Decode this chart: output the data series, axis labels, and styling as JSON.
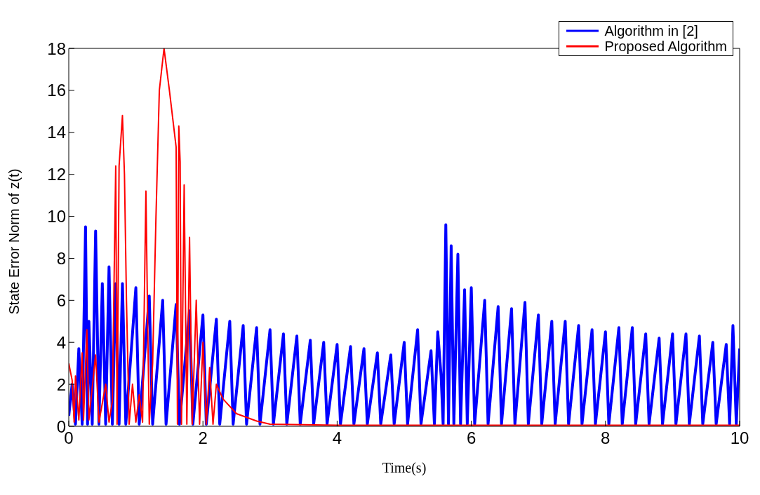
{
  "chart_data": {
    "type": "line",
    "xlabel": "Time(s)",
    "ylabel": "State Error Norm of z(t)",
    "xlim": [
      0,
      10
    ],
    "xticks": [
      0,
      2,
      4,
      6,
      8,
      10
    ],
    "ylim": [
      0,
      18
    ],
    "yticks": [
      0,
      2,
      4,
      6,
      8,
      10,
      12,
      14,
      16,
      18
    ],
    "grid": false,
    "legend": "top right",
    "marker": "none",
    "line_style": "solid",
    "series": [
      {
        "name": "Algorithm in [2]",
        "color": "#0000ff",
        "x": [
          0,
          0.05,
          0.1,
          0.15,
          0.2,
          0.25,
          0.28,
          0.3,
          0.35,
          0.4,
          0.45,
          0.5,
          0.55,
          0.6,
          0.65,
          0.7,
          0.75,
          0.8,
          0.85,
          1.0,
          1.05,
          1.2,
          1.25,
          1.4,
          1.45,
          1.6,
          1.65,
          1.8,
          1.85,
          2.0,
          2.05,
          2.2,
          2.25,
          2.4,
          2.45,
          2.6,
          2.65,
          2.8,
          2.85,
          3.0,
          3.05,
          3.2,
          3.25,
          3.4,
          3.45,
          3.6,
          3.65,
          3.8,
          3.85,
          4.0,
          4.05,
          4.2,
          4.25,
          4.4,
          4.45,
          4.6,
          4.65,
          4.8,
          4.85,
          5.0,
          5.05,
          5.2,
          5.25,
          5.4,
          5.45,
          5.5,
          5.55,
          5.58,
          5.62,
          5.66,
          5.7,
          5.74,
          5.8,
          5.84,
          5.9,
          5.94,
          6.0,
          6.05,
          6.2,
          6.25,
          6.4,
          6.45,
          6.6,
          6.65,
          6.8,
          6.85,
          7.0,
          7.05,
          7.2,
          7.25,
          7.4,
          7.45,
          7.6,
          7.65,
          7.8,
          7.85,
          8.0,
          8.05,
          8.2,
          8.25,
          8.4,
          8.45,
          8.6,
          8.65,
          8.8,
          8.85,
          9.0,
          9.05,
          9.2,
          9.25,
          9.4,
          9.45,
          9.6,
          9.65,
          9.8,
          9.85,
          9.9,
          9.95,
          10
        ],
        "values": [
          0.5,
          2.0,
          0.1,
          3.7,
          0.1,
          9.5,
          0.1,
          5.0,
          0.1,
          9.3,
          0.1,
          6.8,
          0.1,
          7.6,
          0.1,
          6.8,
          0.1,
          6.8,
          0.1,
          6.6,
          0.1,
          6.2,
          0.1,
          6.0,
          0.1,
          5.8,
          0.1,
          5.5,
          0.1,
          5.3,
          0.1,
          5.1,
          0.1,
          5.0,
          0.1,
          4.8,
          0.1,
          4.7,
          0.1,
          4.6,
          0.1,
          4.4,
          0.1,
          4.3,
          0.1,
          4.1,
          0.1,
          4.0,
          0.1,
          3.9,
          0.1,
          3.8,
          0.1,
          3.7,
          0.1,
          3.5,
          0.1,
          3.4,
          0.1,
          4.0,
          0.1,
          4.6,
          0.1,
          3.6,
          0.1,
          4.5,
          2.4,
          0.1,
          9.6,
          0.1,
          8.6,
          0.1,
          8.2,
          0.1,
          6.5,
          0.1,
          6.6,
          0.1,
          6.0,
          0.1,
          5.7,
          0.1,
          5.6,
          0.1,
          5.9,
          0.1,
          5.3,
          0.1,
          5.0,
          0.1,
          5.0,
          0.1,
          4.8,
          0.1,
          4.6,
          0.1,
          4.5,
          0.1,
          4.7,
          0.1,
          4.7,
          0.1,
          4.4,
          0.1,
          4.2,
          0.1,
          4.4,
          0.1,
          4.4,
          0.1,
          4.3,
          0.1,
          4.0,
          0.1,
          3.9,
          0.1,
          4.8,
          0.1,
          3.7
        ]
      },
      {
        "name": "Proposed Algorithm",
        "color": "#ff0000",
        "x": [
          0,
          0.05,
          0.08,
          0.1,
          0.15,
          0.2,
          0.22,
          0.27,
          0.3,
          0.4,
          0.45,
          0.55,
          0.6,
          0.65,
          0.68,
          0.7,
          0.72,
          0.75,
          0.8,
          0.83,
          0.86,
          0.9,
          0.95,
          1.0,
          1.05,
          1.1,
          1.15,
          1.18,
          1.2,
          1.25,
          1.3,
          1.35,
          1.42,
          1.5,
          1.6,
          1.62,
          1.64,
          1.66,
          1.68,
          1.72,
          1.76,
          1.8,
          1.84,
          1.9,
          1.95,
          2.0,
          2.05,
          2.1,
          2.15,
          2.2,
          2.3,
          2.5,
          2.8,
          3.0,
          4.0,
          10
        ],
        "values": [
          3.0,
          2.2,
          0.2,
          2.4,
          0.3,
          3.5,
          0.3,
          4.6,
          0.3,
          3.4,
          0.2,
          2.0,
          0.2,
          1.2,
          8,
          12.4,
          0.1,
          12.4,
          14.8,
          12,
          6,
          0.1,
          2.0,
          0.2,
          1.5,
          0.2,
          11.2,
          4,
          0.1,
          3,
          10,
          16,
          18,
          16,
          13.3,
          0.1,
          14.3,
          12.6,
          0.1,
          11.5,
          0.1,
          9,
          0.1,
          6,
          0.1,
          4,
          0.1,
          2.8,
          0.1,
          2.0,
          1.3,
          0.6,
          0.25,
          0.1,
          0.05,
          0.05
        ]
      }
    ]
  }
}
